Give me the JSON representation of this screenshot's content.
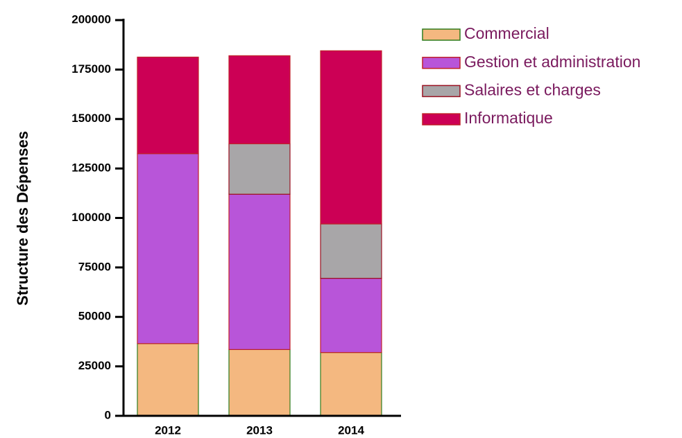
{
  "chart_data": {
    "type": "stacked_bar",
    "y_label": "Structure des Dépenses",
    "categories": [
      "2012",
      "2013",
      "2014"
    ],
    "series": [
      {
        "name": "Commercial",
        "color": "#f4b880",
        "edge": "#2e7d1e",
        "values": [
          36500,
          33500,
          32000
        ]
      },
      {
        "name": "Gestion et administration",
        "color": "#b855d9",
        "edge": "#c0202a",
        "values": [
          96000,
          78500,
          37500
        ]
      },
      {
        "name": "Salaires et charges",
        "color": "#a8a6a8",
        "edge": "#9a1020",
        "values": [
          0,
          25500,
          27500
        ]
      },
      {
        "name": "Informatique",
        "color": "#cc0055",
        "edge": "#c0202a",
        "values": [
          48800,
          44500,
          87500
        ]
      }
    ],
    "ylim": [
      0,
      200000
    ],
    "yticks": [
      0,
      25000,
      50000,
      75000,
      100000,
      125000,
      150000,
      175000,
      200000
    ],
    "legend": "right"
  }
}
